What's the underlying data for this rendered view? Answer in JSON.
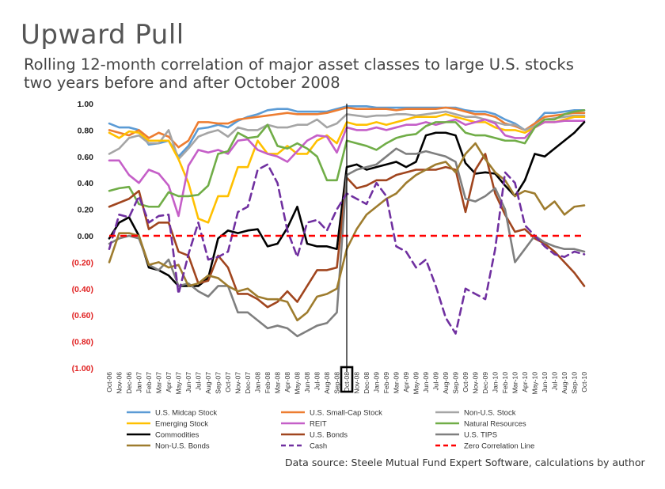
{
  "title": "Upward Pull",
  "subtitle_line1": "Rolling 12-month correlation of major asset classes to large U.S. stocks",
  "subtitle_line2": "two years before and after October 2008",
  "source": "Data source: Steele Mutual Fund Expert Software, calculations by author",
  "chart_data": {
    "type": "line",
    "title": "Upward Pull",
    "subtitle": "Rolling 12-month correlation of major asset classes to large U.S. stocks two years before and after October 2008",
    "xlabel": "",
    "ylabel": "",
    "ylim": [
      -1.0,
      1.0
    ],
    "y_ticks": [
      "1.00",
      "0.80",
      "0.60",
      "0.40",
      "0.20",
      "0.00",
      "(0.20)",
      "(0.40)",
      "(0.60)",
      "(0.80)",
      "(1.00)"
    ],
    "y_tick_values": [
      1.0,
      0.8,
      0.6,
      0.4,
      0.2,
      0.0,
      -0.2,
      -0.4,
      -0.6,
      -0.8,
      -1.0
    ],
    "negative_tick_color": "#e02020",
    "categories": [
      "Oct-06",
      "Nov-06",
      "Dec-06",
      "Jan-07",
      "Feb-07",
      "Mar-07",
      "Apr-07",
      "May-07",
      "Jun-07",
      "Jul-07",
      "Aug-07",
      "Sep-07",
      "Oct-07",
      "Nov-07",
      "Dec-07",
      "Jan-08",
      "Feb-08",
      "Mar-08",
      "Apr-08",
      "May-08",
      "Jun-08",
      "Jul-08",
      "Aug-08",
      "Sep-08",
      "Oct-08",
      "Nov-08",
      "Dec-08",
      "Jan-09",
      "Feb-09",
      "Mar-09",
      "Apr-09",
      "May-09",
      "Jun-09",
      "Jul-09",
      "Aug-09",
      "Sep-09",
      "Oct-09",
      "Nov-09",
      "Dec-09",
      "Jan-10",
      "Feb-10",
      "Mar-10",
      "Apr-10",
      "May-10",
      "Jun-10",
      "Jul-10",
      "Aug-10",
      "Sep-10",
      "Oct-10"
    ],
    "tick_labels": [
      "Oct-06",
      "Nov-06",
      "Dec-06",
      "Jan-07",
      "Feb-07",
      "Mar-07",
      "Apr-07",
      "May-07",
      "Jun-07",
      "Jul-07",
      "Aug-07",
      "Sep-07",
      "Oct-07",
      "Nov-07",
      "Dec-07",
      "Jan-08",
      "Feb-08",
      "Mar-08",
      "Apr-08",
      "May-08",
      "Jun-08",
      "Jul-08",
      "Aug-08",
      "Sep-08",
      "Oct-08",
      "Nov-08",
      "Dec-08",
      "Jan-09",
      "Feb-09",
      "Mar-09",
      "Apr-09",
      "May-09",
      "Jun-09",
      "Jul-09",
      "Aug-09",
      "Sep-09",
      "Oct-09",
      "Nov-09",
      "Dec-09",
      "Jan-10",
      "Feb-10",
      "Mar-10",
      "Apr-10",
      "May-10",
      "Jun-10",
      "Jul-10",
      "Aug-10",
      "Sep-10",
      "Oct-10"
    ],
    "highlight": {
      "category": "Oct-08",
      "note": "vertical line and box marking October 2008"
    },
    "reference_line": {
      "name": "Zero Correlation Line",
      "value": 0.0,
      "color": "#ff0000",
      "dash": true
    },
    "series": [
      {
        "name": "U.S. Midcap Stock",
        "color": "#5b9bd5",
        "dash": false,
        "values": [
          0.85,
          0.82,
          0.82,
          0.8,
          0.69,
          0.7,
          0.72,
          0.6,
          0.68,
          0.81,
          0.82,
          0.84,
          0.82,
          0.87,
          0.9,
          0.92,
          0.95,
          0.96,
          0.96,
          0.94,
          0.94,
          0.94,
          0.94,
          0.96,
          0.98,
          0.98,
          0.98,
          0.97,
          0.97,
          0.97,
          0.97,
          0.97,
          0.97,
          0.97,
          0.97,
          0.97,
          0.95,
          0.94,
          0.94,
          0.92,
          0.88,
          0.85,
          0.8,
          0.85,
          0.93,
          0.93,
          0.94,
          0.95,
          0.95
        ]
      },
      {
        "name": "U.S. Small-Cap Stock",
        "color": "#ed7d31",
        "dash": false,
        "values": [
          0.8,
          0.78,
          0.76,
          0.8,
          0.74,
          0.78,
          0.75,
          0.67,
          0.72,
          0.86,
          0.86,
          0.85,
          0.85,
          0.88,
          0.89,
          0.9,
          0.91,
          0.92,
          0.93,
          0.92,
          0.92,
          0.92,
          0.93,
          0.95,
          0.97,
          0.96,
          0.96,
          0.96,
          0.96,
          0.95,
          0.96,
          0.96,
          0.96,
          0.96,
          0.97,
          0.96,
          0.94,
          0.92,
          0.92,
          0.9,
          0.85,
          0.83,
          0.8,
          0.85,
          0.9,
          0.91,
          0.92,
          0.93,
          0.93
        ]
      },
      {
        "name": "Non-U.S. Stock",
        "color": "#a5a5a5",
        "dash": false,
        "values": [
          0.62,
          0.66,
          0.74,
          0.76,
          0.7,
          0.7,
          0.8,
          0.58,
          0.66,
          0.75,
          0.78,
          0.8,
          0.75,
          0.82,
          0.8,
          0.8,
          0.84,
          0.82,
          0.82,
          0.84,
          0.84,
          0.88,
          0.82,
          0.85,
          0.92,
          0.91,
          0.9,
          0.91,
          0.91,
          0.92,
          0.92,
          0.91,
          0.92,
          0.93,
          0.94,
          0.92,
          0.9,
          0.9,
          0.88,
          0.86,
          0.84,
          0.84,
          0.8,
          0.83,
          0.88,
          0.89,
          0.9,
          0.91,
          0.91
        ]
      },
      {
        "name": "Emerging  Stock",
        "color": "#ffc000",
        "dash": false,
        "values": [
          0.78,
          0.74,
          0.79,
          0.78,
          0.72,
          0.72,
          0.72,
          0.58,
          0.4,
          0.13,
          0.1,
          0.3,
          0.3,
          0.52,
          0.52,
          0.72,
          0.62,
          0.62,
          0.68,
          0.62,
          0.62,
          0.72,
          0.76,
          0.7,
          0.86,
          0.84,
          0.84,
          0.86,
          0.84,
          0.86,
          0.88,
          0.9,
          0.9,
          0.9,
          0.92,
          0.9,
          0.88,
          0.86,
          0.86,
          0.82,
          0.8,
          0.8,
          0.78,
          0.82,
          0.86,
          0.86,
          0.88,
          0.9,
          0.9
        ]
      },
      {
        "name": "REIT",
        "color": "#c55fc8",
        "dash": false,
        "values": [
          0.57,
          0.57,
          0.46,
          0.4,
          0.5,
          0.47,
          0.38,
          0.15,
          0.53,
          0.65,
          0.63,
          0.65,
          0.62,
          0.72,
          0.73,
          0.65,
          0.62,
          0.6,
          0.56,
          0.64,
          0.72,
          0.76,
          0.75,
          0.63,
          0.82,
          0.8,
          0.8,
          0.82,
          0.8,
          0.82,
          0.84,
          0.84,
          0.86,
          0.84,
          0.86,
          0.88,
          0.84,
          0.86,
          0.88,
          0.85,
          0.76,
          0.74,
          0.74,
          0.82,
          0.86,
          0.86,
          0.87,
          0.87,
          0.87
        ]
      },
      {
        "name": "Natural Resources",
        "color": "#70ad47",
        "dash": false,
        "values": [
          0.34,
          0.36,
          0.37,
          0.24,
          0.22,
          0.22,
          0.33,
          0.3,
          0.3,
          0.31,
          0.38,
          0.62,
          0.64,
          0.78,
          0.74,
          0.75,
          0.84,
          0.68,
          0.66,
          0.7,
          0.66,
          0.6,
          0.42,
          0.42,
          0.72,
          0.7,
          0.68,
          0.65,
          0.7,
          0.74,
          0.76,
          0.77,
          0.83,
          0.86,
          0.86,
          0.86,
          0.78,
          0.76,
          0.76,
          0.74,
          0.72,
          0.72,
          0.7,
          0.82,
          0.88,
          0.88,
          0.92,
          0.94,
          0.95
        ]
      },
      {
        "name": "Commodities",
        "color": "#000000",
        "dash": false,
        "values": [
          -0.02,
          0.1,
          0.14,
          0.0,
          -0.24,
          -0.26,
          -0.3,
          -0.38,
          -0.38,
          -0.38,
          -0.32,
          -0.02,
          0.04,
          0.02,
          0.04,
          0.05,
          -0.08,
          -0.06,
          0.06,
          0.22,
          -0.06,
          -0.08,
          -0.08,
          -0.1,
          0.52,
          0.54,
          0.5,
          0.52,
          0.54,
          0.56,
          0.52,
          0.56,
          0.76,
          0.78,
          0.78,
          0.76,
          0.55,
          0.47,
          0.48,
          0.47,
          0.38,
          0.3,
          0.42,
          0.62,
          0.6,
          0.66,
          0.72,
          0.78,
          0.86
        ]
      },
      {
        "name": "U.S. Bonds",
        "color": "#a0451e",
        "dash": false,
        "values": [
          0.22,
          0.25,
          0.28,
          0.34,
          0.05,
          0.1,
          0.1,
          -0.12,
          -0.15,
          -0.36,
          -0.34,
          -0.15,
          -0.24,
          -0.44,
          -0.44,
          -0.48,
          -0.54,
          -0.5,
          -0.42,
          -0.5,
          -0.38,
          -0.26,
          -0.26,
          -0.24,
          0.44,
          0.36,
          0.38,
          0.42,
          0.42,
          0.46,
          0.48,
          0.5,
          0.5,
          0.5,
          0.52,
          0.5,
          0.18,
          0.5,
          0.62,
          0.32,
          0.16,
          0.03,
          0.05,
          -0.02,
          -0.06,
          -0.12,
          -0.2,
          -0.28,
          -0.38
        ]
      },
      {
        "name": "U.S. TIPS",
        "color": "#7f7f7f",
        "dash": false,
        "values": [
          -0.06,
          -0.02,
          0.0,
          -0.02,
          -0.22,
          -0.26,
          -0.18,
          -0.38,
          -0.36,
          -0.42,
          -0.46,
          -0.38,
          -0.38,
          -0.58,
          -0.58,
          -0.64,
          -0.7,
          -0.68,
          -0.7,
          -0.76,
          -0.72,
          -0.68,
          -0.66,
          -0.58,
          0.46,
          0.5,
          0.52,
          0.54,
          0.6,
          0.66,
          0.62,
          0.62,
          0.64,
          0.62,
          0.6,
          0.56,
          0.28,
          0.26,
          0.3,
          0.36,
          0.2,
          -0.2,
          -0.1,
          0.0,
          -0.05,
          -0.08,
          -0.1,
          -0.1,
          -0.12
        ]
      },
      {
        "name": "Non-U.S. Bonds",
        "color": "#9e7c2e",
        "dash": false,
        "values": [
          -0.2,
          0.02,
          0.02,
          0.0,
          -0.22,
          -0.2,
          -0.24,
          -0.22,
          -0.38,
          -0.36,
          -0.3,
          -0.32,
          -0.38,
          -0.42,
          -0.4,
          -0.46,
          -0.48,
          -0.48,
          -0.5,
          -0.64,
          -0.58,
          -0.46,
          -0.44,
          -0.4,
          -0.1,
          0.05,
          0.16,
          0.22,
          0.28,
          0.32,
          0.4,
          0.46,
          0.5,
          0.54,
          0.56,
          0.48,
          0.62,
          0.7,
          0.58,
          0.48,
          0.42,
          0.3,
          0.34,
          0.32,
          0.2,
          0.26,
          0.16,
          0.22,
          0.23
        ]
      },
      {
        "name": "Cash",
        "color": "#7030a0",
        "dash": true,
        "values": [
          -0.1,
          0.16,
          0.14,
          0.3,
          0.1,
          0.15,
          0.16,
          -0.44,
          -0.14,
          0.1,
          -0.18,
          -0.16,
          -0.12,
          0.18,
          0.22,
          0.5,
          0.54,
          0.4,
          0.04,
          -0.16,
          0.1,
          0.12,
          0.04,
          0.2,
          0.32,
          0.28,
          0.24,
          0.4,
          0.3,
          -0.08,
          -0.12,
          -0.24,
          -0.18,
          -0.38,
          -0.62,
          -0.74,
          -0.4,
          -0.44,
          -0.48,
          -0.1,
          0.48,
          0.4,
          0.08,
          0.0,
          -0.08,
          -0.14,
          -0.16,
          -0.12,
          -0.14
        ]
      }
    ],
    "legend_order": [
      "U.S. Midcap Stock",
      "U.S. Small-Cap Stock",
      "Non-U.S. Stock",
      "Emerging  Stock",
      "REIT",
      "Natural Resources",
      "Commodities",
      "U.S. Bonds",
      "U.S. TIPS",
      "Non-U.S. Bonds",
      "Cash",
      "Zero Correlation Line"
    ],
    "legend_position": "bottom"
  }
}
